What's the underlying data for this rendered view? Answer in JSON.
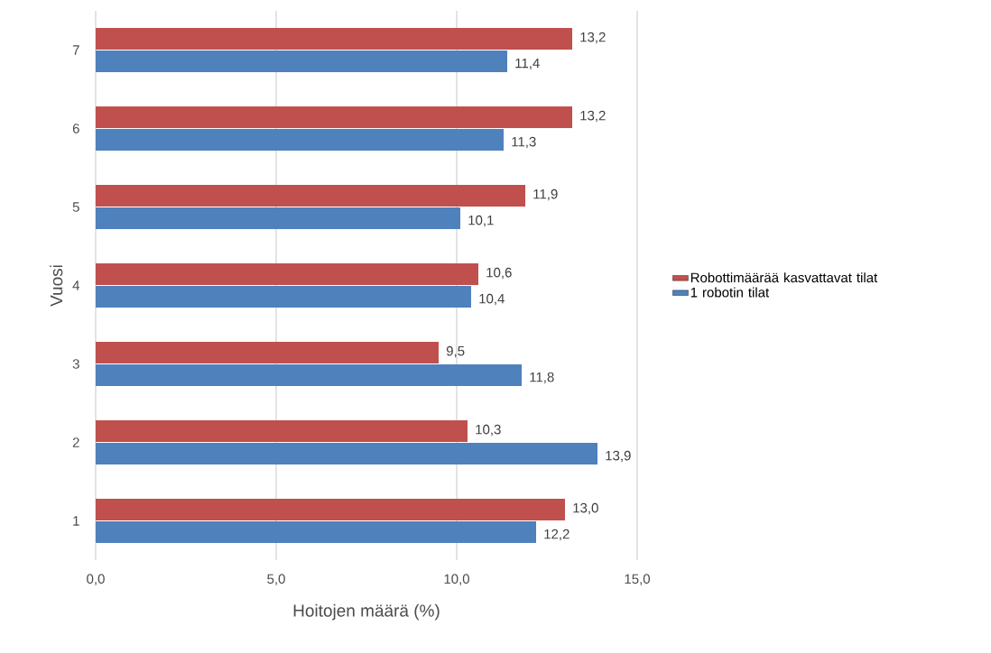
{
  "chart_data": {
    "type": "bar",
    "orientation": "horizontal",
    "xlabel": "Hoitojen määrä (%)",
    "ylabel": "Vuosi",
    "categories": [
      "7",
      "6",
      "5",
      "4",
      "3",
      "2",
      "1"
    ],
    "series": [
      {
        "name": "Robottimäärää kasvattavat tilat",
        "color": "#c0504d",
        "values": [
          13.2,
          13.2,
          11.9,
          10.6,
          9.5,
          10.3,
          13.0
        ],
        "value_labels": [
          "13,2",
          "13,2",
          "11,9",
          "10,6",
          "9,5",
          "10,3",
          "13,0"
        ]
      },
      {
        "name": "1 robotin tilat",
        "color": "#4f81bd",
        "values": [
          11.4,
          11.3,
          10.1,
          10.4,
          11.8,
          13.9,
          12.2
        ],
        "value_labels": [
          "11,4",
          "11,3",
          "10,1",
          "10,4",
          "11,8",
          "13,9",
          "12,2"
        ]
      }
    ],
    "xlim": [
      0,
      15
    ],
    "xticks": [
      {
        "value": 0,
        "label": "0,0"
      },
      {
        "value": 5,
        "label": "5,0"
      },
      {
        "value": 10,
        "label": "10,0"
      },
      {
        "value": 15,
        "label": "15,0"
      }
    ],
    "grid": "x",
    "legend": "right"
  }
}
